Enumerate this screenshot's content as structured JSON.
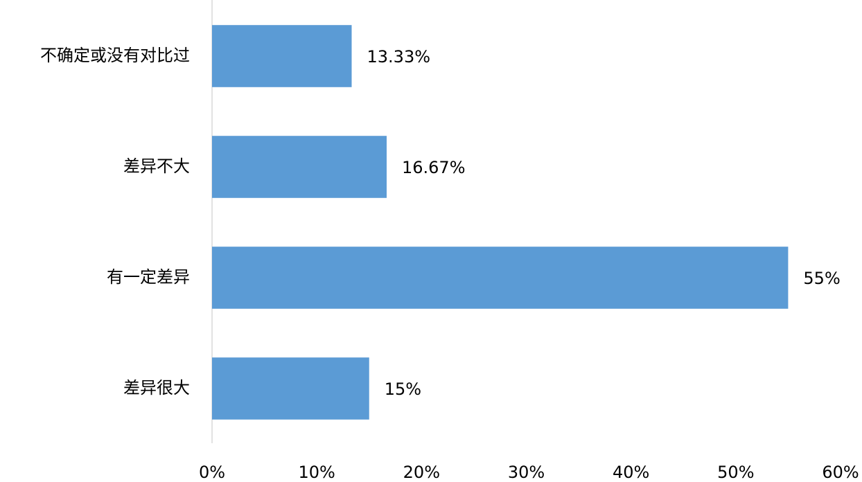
{
  "chart_data": {
    "type": "bar",
    "orientation": "horizontal",
    "categories": [
      "不确定或没有对比过",
      "差异不大",
      "有一定差异",
      "差异很大"
    ],
    "values": [
      13.33,
      16.67,
      55,
      15
    ],
    "value_labels": [
      "13.33%",
      "16.67%",
      "55%",
      "15%"
    ],
    "color": "#5b9bd5",
    "xlim": [
      0,
      60
    ],
    "xticks": [
      {
        "value": 0,
        "label": "0%"
      },
      {
        "value": 10,
        "label": "10%"
      },
      {
        "value": 20,
        "label": "20%"
      },
      {
        "value": 30,
        "label": "30%"
      },
      {
        "value": 40,
        "label": "40%"
      },
      {
        "value": 50,
        "label": "50%"
      },
      {
        "value": 60,
        "label": "60%"
      }
    ],
    "grid": false
  }
}
